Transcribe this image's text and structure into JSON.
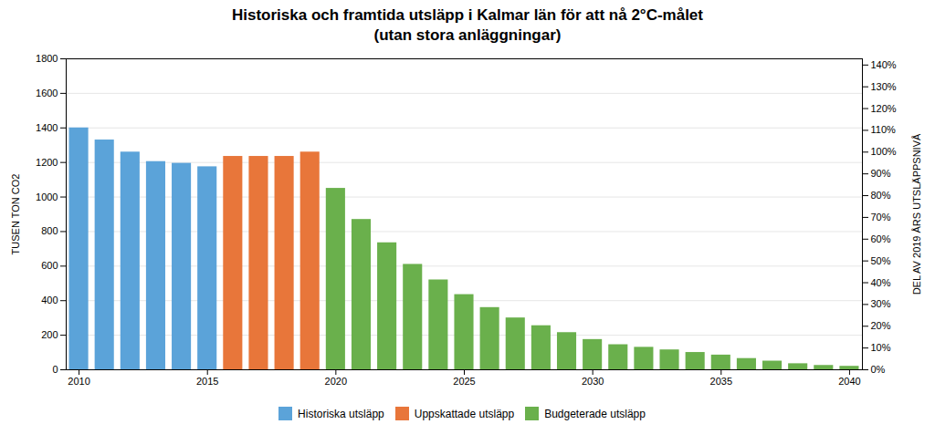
{
  "chart_data": {
    "type": "bar",
    "title": "Historiska och framtida utsläpp i Kalmar län för att nå 2°C-målet",
    "subtitle": "(utan stora anläggningar)",
    "x": [
      2010,
      2011,
      2012,
      2013,
      2014,
      2015,
      2016,
      2017,
      2018,
      2019,
      2020,
      2021,
      2022,
      2023,
      2024,
      2025,
      2026,
      2027,
      2028,
      2029,
      2030,
      2031,
      2032,
      2033,
      2034,
      2035,
      2036,
      2037,
      2038,
      2039,
      2040
    ],
    "series": [
      {
        "name": "Historiska utsläpp",
        "color": "#5ba3d9",
        "values": [
          1400,
          1330,
          1260,
          1205,
          1195,
          1175,
          null,
          null,
          null,
          null,
          null,
          null,
          null,
          null,
          null,
          null,
          null,
          null,
          null,
          null,
          null,
          null,
          null,
          null,
          null,
          null,
          null,
          null,
          null,
          null,
          null
        ]
      },
      {
        "name": "Uppskattade utsläpp",
        "color": "#e8763a",
        "values": [
          null,
          null,
          null,
          null,
          null,
          null,
          1235,
          1235,
          1235,
          1260,
          null,
          null,
          null,
          null,
          null,
          null,
          null,
          null,
          null,
          null,
          null,
          null,
          null,
          null,
          null,
          null,
          null,
          null,
          null,
          null,
          null
        ]
      },
      {
        "name": "Budgeterade utsläpp",
        "color": "#6ab04c",
        "values": [
          null,
          null,
          null,
          null,
          null,
          null,
          null,
          null,
          null,
          null,
          1050,
          870,
          735,
          610,
          520,
          435,
          360,
          300,
          255,
          215,
          175,
          145,
          130,
          115,
          100,
          85,
          65,
          50,
          35,
          25,
          20
        ]
      }
    ],
    "xlim": [
      2009.5,
      2040.5
    ],
    "xticks": [
      2010,
      2015,
      2020,
      2025,
      2030,
      2035,
      2040
    ],
    "ylabel": "TUSEN TON CO2",
    "ylim": [
      0,
      1800
    ],
    "yticks": [
      0,
      200,
      400,
      600,
      800,
      1000,
      1200,
      1400,
      1600,
      1800
    ],
    "y2label": "DEL AV 2019 ÅRS UTSLÄPPSNIVÅ",
    "y2lim": [
      0,
      142.85714285714286
    ],
    "y2ticks": [
      {
        "value": 0,
        "label": "0%"
      },
      {
        "value": 10,
        "label": "10%"
      },
      {
        "value": 20,
        "label": "20%"
      },
      {
        "value": 30,
        "label": "30%"
      },
      {
        "value": 40,
        "label": "40%"
      },
      {
        "value": 50,
        "label": "50%"
      },
      {
        "value": 60,
        "label": "60%"
      },
      {
        "value": 70,
        "label": "70%"
      },
      {
        "value": 80,
        "label": "80%"
      },
      {
        "value": 90,
        "label": "90%"
      },
      {
        "value": 100,
        "label": "100%"
      },
      {
        "value": 110,
        "label": "110%"
      },
      {
        "value": 120,
        "label": "120%"
      },
      {
        "value": 130,
        "label": "130%"
      },
      {
        "value": 140,
        "label": "140%"
      }
    ],
    "grid": true,
    "legend": "bottom"
  }
}
